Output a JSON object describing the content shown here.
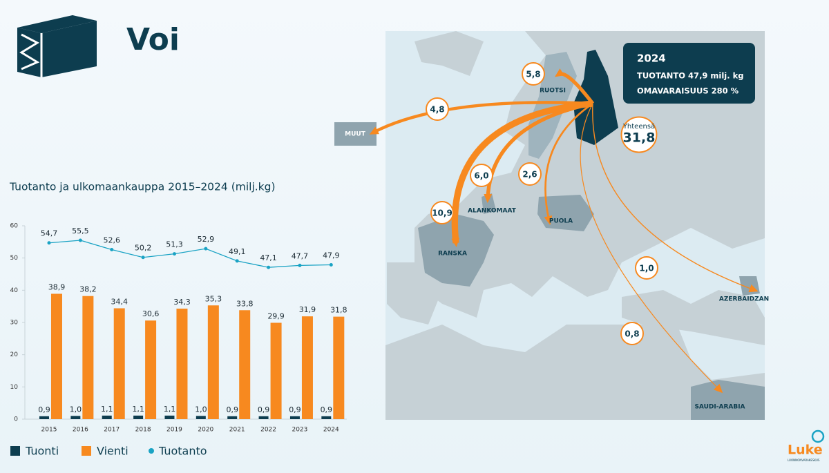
{
  "title": "Voi",
  "info": {
    "year": "2024",
    "production": "TUOTANTO 47,9 milj. kg",
    "self_sufficiency": "OMAVARAISUUS 280 %"
  },
  "logo": {
    "name": "Luke",
    "subtitle": "LUONNONVARAKESKUS"
  },
  "map": {
    "destinations": [
      "RUOTSI",
      "MUUT",
      "ALANKOMAAT",
      "RANSKA",
      "PUOLA",
      "AZERBAIDZAN",
      "SAUDI-ARABIA"
    ],
    "values": [
      5.8,
      4.8,
      6.0,
      10.9,
      2.6,
      1.0,
      0.8
    ],
    "value_labels": [
      "5,8",
      "4,8",
      "6,0",
      "10,9",
      "2,6",
      "1,0",
      "0,8"
    ],
    "total": {
      "label": "Yhteensä",
      "value": 31.8,
      "value_label": "31,8"
    }
  },
  "chart_data": {
    "type": "bar",
    "title": "Tuotanto ja ulkomaankauppa 2015–2024 (milj.kg)",
    "categories": [
      "2015",
      "2016",
      "2017",
      "2018",
      "2019",
      "2020",
      "2021",
      "2022",
      "2023",
      "2024"
    ],
    "series": [
      {
        "name": "Tuonti",
        "type": "bar",
        "color": "#0d3d4f",
        "values": [
          0.9,
          1.0,
          1.1,
          1.1,
          1.1,
          1.0,
          0.9,
          0.9,
          0.9,
          0.9
        ],
        "value_labels": [
          "0,9",
          "1,0",
          "1,1",
          "1,1",
          "1,1",
          "1,0",
          "0,9",
          "0,9",
          "0,9",
          "0,9"
        ]
      },
      {
        "name": "Vienti",
        "type": "bar",
        "color": "#f7891f",
        "values": [
          38.9,
          38.2,
          34.4,
          30.6,
          34.3,
          35.3,
          33.8,
          29.9,
          31.9,
          31.8
        ],
        "value_labels": [
          "38,9",
          "38,2",
          "34,4",
          "30,6",
          "34,3",
          "35,3",
          "33,8",
          "29,9",
          "31,9",
          "31,8"
        ]
      },
      {
        "name": "Tuotanto",
        "type": "line",
        "color": "#1aa3c4",
        "values": [
          54.7,
          55.5,
          52.6,
          50.2,
          51.3,
          52.9,
          49.1,
          47.1,
          47.7,
          47.9
        ],
        "value_labels": [
          "54,7",
          "55,5",
          "52,6",
          "50,2",
          "51,3",
          "52,9",
          "49,1",
          "47,1",
          "47,7",
          "47,9"
        ]
      }
    ],
    "ylim": [
      0,
      60
    ],
    "yticks": [
      0,
      10,
      20,
      30,
      40,
      50,
      60
    ],
    "grid": false
  }
}
